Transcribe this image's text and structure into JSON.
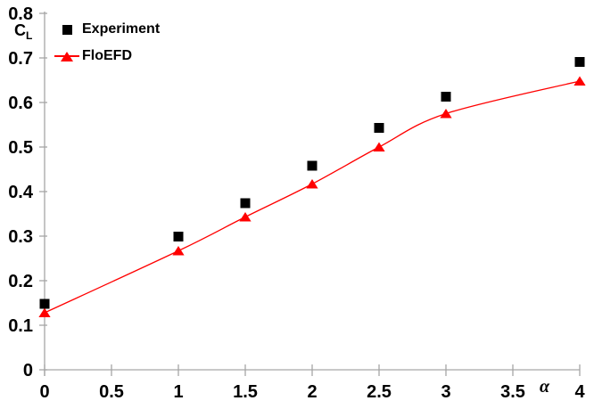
{
  "chart_data": {
    "type": "line",
    "x": [
      0,
      1,
      1.5,
      2,
      2.5,
      3,
      4
    ],
    "series": [
      {
        "name": "Experiment",
        "type": "scatter",
        "marker": "square",
        "color": "#000000",
        "values": [
          0.148,
          0.299,
          0.374,
          0.458,
          0.543,
          0.613,
          0.691
        ]
      },
      {
        "name": "FloEFD",
        "type": "line",
        "marker": "triangle",
        "color": "#FF0000",
        "smooth": true,
        "values": [
          0.128,
          0.267,
          0.343,
          0.417,
          0.5,
          0.575,
          0.648
        ]
      }
    ],
    "title": "",
    "xlabel": "α",
    "ylabel": "CL",
    "ylabel_main": "C",
    "ylabel_sub": "L",
    "xlim": [
      0,
      4
    ],
    "ylim": [
      0,
      0.8
    ],
    "x_ticks": [
      0,
      0.5,
      1,
      1.5,
      2,
      2.5,
      3,
      3.5,
      4
    ],
    "y_ticks": [
      0,
      0.1,
      0.2,
      0.3,
      0.4,
      0.5,
      0.6,
      0.7,
      0.8
    ],
    "x_tick_labels": [
      "0",
      "0.5",
      "1",
      "1.5",
      "2",
      "2.5",
      "3",
      "3.5",
      "4"
    ],
    "y_tick_labels": [
      "0",
      "0.1",
      "0.2",
      "0.3",
      "0.4",
      "0.5",
      "0.6",
      "0.7",
      "0.8"
    ],
    "grid": false,
    "legend_position": "top-left",
    "axis_color": "#A6A6A6",
    "background_color": "#FFFFFF"
  }
}
